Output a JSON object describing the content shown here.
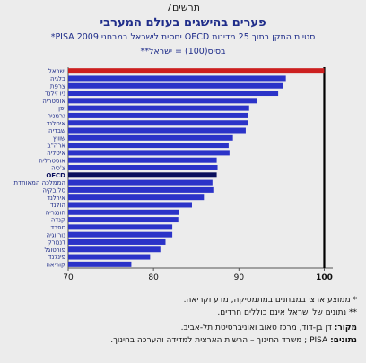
{
  "figure_number": "תרשים7",
  "title": "פערים בהישגים בעולם המערבי",
  "subtitle": "סטיות התקן בתוך 25 מדינות OECD יחסית לישראל במבחני PISA 2009*",
  "baseline_note": "בסיס(100) = ישראל**",
  "footnote_1": "*   ממוצע ארצי במבחנים במתמטיקה, מדע וקריאה.",
  "footnote_2": "**  נתונים של ישראל אינם כוללים חרדים.",
  "source_label": "מקור:",
  "source_text": "דן בן-דוד, מרכז טאוב ואוניברסיטת תל-אביב.",
  "notes_label": "נתונים:",
  "notes_text": "PISA ; משרד החינוך – הרשות הארצית למדידה והערכה בחינוך.",
  "colors": {
    "default_bar": "#2b33c8",
    "highlight_bar": "#cc1f1f",
    "oecd_bar": "#0a0f5c",
    "axis_line": "#000000"
  },
  "chart_data": {
    "type": "bar",
    "orientation": "horizontal",
    "title": "פערים בהישגים בעולם המערבי",
    "xlim": [
      70,
      101
    ],
    "x_ticks": [
      "70",
      "80",
      "90",
      "100"
    ],
    "baseline_value": 100,
    "categories": [
      "ישראל",
      "בלגיה",
      "צרפת",
      "ניו זילנד",
      "אוסטריה",
      "יפן",
      "גרמניה",
      "איסלנד",
      "שבדיה",
      "שוויץ",
      "ארה\"ב",
      "איטליה",
      "אוסטרליה",
      "צ'כיה",
      "OECD",
      "הממלכה המאוחדת",
      "סלובקיה",
      "אירלנד",
      "הולנד",
      "הונגריה",
      "קנדה",
      "ספרד",
      "נורווגיה",
      "דנמרק",
      "פורטוגל",
      "פינלנד",
      "קוריאה"
    ],
    "values": [
      100.0,
      95.5,
      95.2,
      94.6,
      92.1,
      91.2,
      91.1,
      91.1,
      90.8,
      89.3,
      88.8,
      88.9,
      87.4,
      87.5,
      87.4,
      86.9,
      87.0,
      85.9,
      84.5,
      83.0,
      82.9,
      82.2,
      82.2,
      81.4,
      80.8,
      79.6,
      77.4
    ],
    "highlight": {
      "ישראל": "#cc1f1f",
      "OECD": "#0a0f5c"
    },
    "grid": false
  }
}
